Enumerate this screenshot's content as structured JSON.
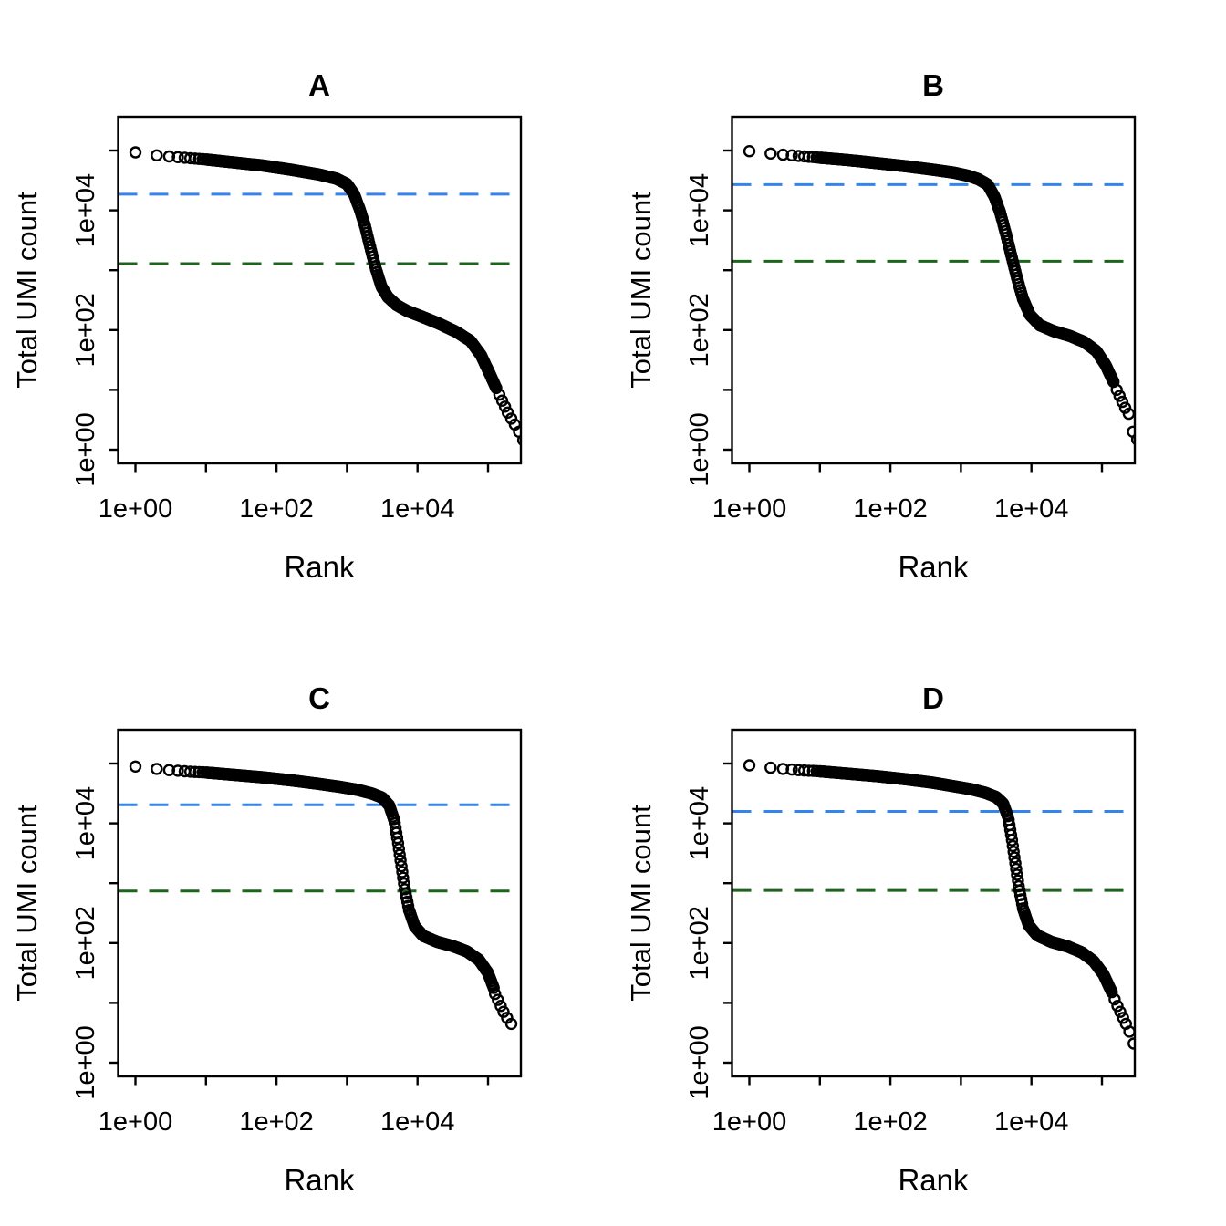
{
  "point_color": "#000000",
  "knee_color": "#3584ec",
  "inflection_color": "#1d651d",
  "chart_data": [
    {
      "id": "A",
      "type": "scatter",
      "title": "A",
      "xlabel": "Rank",
      "ylabel": "Total UMI count",
      "x_scale": "log10",
      "y_scale": "log10",
      "xlim_log10": [
        -0.25,
        5.72
      ],
      "ylim_log10": [
        -0.23,
        5.56
      ],
      "x_tick_decades": [
        0,
        1,
        2,
        3,
        4,
        5
      ],
      "y_tick_decades": [
        0,
        1,
        2,
        3,
        4,
        5
      ],
      "x_labeled_decades": [
        0,
        2,
        4
      ],
      "y_labeled_decades": [
        0,
        2,
        4
      ],
      "x_tick_labels": [
        "1e+00",
        "1e+02",
        "1e+04"
      ],
      "y_tick_labels": [
        "1e+00",
        "1e+02",
        "1e+04"
      ],
      "point_style": {
        "shape": "open-circle",
        "color": "#000000"
      },
      "lines": {
        "knee": {
          "color": "#3584ec",
          "style": "dashed",
          "log10_count": 4.27,
          "approx_count": 18600
        },
        "inflection": {
          "color": "#1d651d",
          "style": "dashed",
          "log10_count": 3.11,
          "approx_count": 1290
        }
      },
      "curve_log10": [
        [
          0,
          4.97
        ],
        [
          0.3,
          4.92
        ],
        [
          0.48,
          4.9
        ],
        [
          0.7,
          4.88
        ],
        [
          1.0,
          4.85
        ],
        [
          1.4,
          4.8
        ],
        [
          1.8,
          4.75
        ],
        [
          2.2,
          4.68
        ],
        [
          2.6,
          4.6
        ],
        [
          2.85,
          4.53
        ],
        [
          3.0,
          4.44
        ],
        [
          3.1,
          4.27
        ],
        [
          3.18,
          4.02
        ],
        [
          3.26,
          3.72
        ],
        [
          3.33,
          3.38
        ],
        [
          3.41,
          3.02
        ],
        [
          3.49,
          2.72
        ],
        [
          3.58,
          2.55
        ],
        [
          3.7,
          2.42
        ],
        [
          3.85,
          2.32
        ],
        [
          4.05,
          2.23
        ],
        [
          4.3,
          2.11
        ],
        [
          4.55,
          1.97
        ],
        [
          4.75,
          1.82
        ],
        [
          4.9,
          1.58
        ],
        [
          5.02,
          1.28
        ],
        [
          5.12,
          1.02
        ]
      ],
      "tail_log10": [
        [
          5.16,
          0.92
        ],
        [
          5.2,
          0.82
        ],
        [
          5.24,
          0.72
        ],
        [
          5.28,
          0.62
        ],
        [
          5.33,
          0.52
        ],
        [
          5.38,
          0.42
        ],
        [
          5.44,
          0.3
        ],
        [
          5.5,
          0.16
        ]
      ]
    },
    {
      "id": "B",
      "type": "scatter",
      "title": "B",
      "xlabel": "Rank",
      "ylabel": "Total UMI count",
      "x_scale": "log10",
      "y_scale": "log10",
      "xlim_log10": [
        -0.25,
        5.72
      ],
      "ylim_log10": [
        -0.23,
        5.56
      ],
      "x_tick_decades": [
        0,
        1,
        2,
        3,
        4,
        5
      ],
      "y_tick_decades": [
        0,
        1,
        2,
        3,
        4,
        5
      ],
      "x_labeled_decades": [
        0,
        2,
        4
      ],
      "y_labeled_decades": [
        0,
        2,
        4
      ],
      "x_tick_labels": [
        "1e+00",
        "1e+02",
        "1e+04"
      ],
      "y_tick_labels": [
        "1e+00",
        "1e+02",
        "1e+04"
      ],
      "point_style": {
        "shape": "open-circle",
        "color": "#000000"
      },
      "lines": {
        "knee": {
          "color": "#3584ec",
          "style": "dashed",
          "log10_count": 4.43,
          "approx_count": 26900
        },
        "inflection": {
          "color": "#1d651d",
          "style": "dashed",
          "log10_count": 3.15,
          "approx_count": 1410
        }
      },
      "curve_log10": [
        [
          0,
          4.99
        ],
        [
          0.3,
          4.95
        ],
        [
          0.48,
          4.93
        ],
        [
          0.7,
          4.91
        ],
        [
          1.0,
          4.88
        ],
        [
          1.4,
          4.84
        ],
        [
          1.8,
          4.79
        ],
        [
          2.2,
          4.74
        ],
        [
          2.6,
          4.68
        ],
        [
          2.9,
          4.63
        ],
        [
          3.1,
          4.58
        ],
        [
          3.25,
          4.52
        ],
        [
          3.38,
          4.43
        ],
        [
          3.48,
          4.22
        ],
        [
          3.56,
          3.95
        ],
        [
          3.64,
          3.6
        ],
        [
          3.72,
          3.22
        ],
        [
          3.8,
          2.85
        ],
        [
          3.88,
          2.52
        ],
        [
          3.98,
          2.25
        ],
        [
          4.12,
          2.08
        ],
        [
          4.32,
          1.98
        ],
        [
          4.55,
          1.9
        ],
        [
          4.75,
          1.8
        ],
        [
          4.92,
          1.65
        ],
        [
          5.05,
          1.42
        ],
        [
          5.17,
          1.12
        ]
      ],
      "tail_log10": [
        [
          5.21,
          1.0
        ],
        [
          5.25,
          0.9
        ],
        [
          5.29,
          0.8
        ],
        [
          5.33,
          0.7
        ],
        [
          5.38,
          0.6
        ],
        [
          5.44,
          0.3
        ],
        [
          5.5,
          0.17
        ]
      ]
    },
    {
      "id": "C",
      "type": "scatter",
      "title": "C",
      "xlabel": "Rank",
      "ylabel": "Total UMI count",
      "x_scale": "log10",
      "y_scale": "log10",
      "xlim_log10": [
        -0.25,
        5.72
      ],
      "ylim_log10": [
        -0.23,
        5.56
      ],
      "x_tick_decades": [
        0,
        1,
        2,
        3,
        4,
        5
      ],
      "y_tick_decades": [
        0,
        1,
        2,
        3,
        4,
        5
      ],
      "x_labeled_decades": [
        0,
        2,
        4
      ],
      "y_labeled_decades": [
        0,
        2,
        4
      ],
      "x_tick_labels": [
        "1e+00",
        "1e+02",
        "1e+04"
      ],
      "y_tick_labels": [
        "1e+00",
        "1e+02",
        "1e+04"
      ],
      "point_style": {
        "shape": "open-circle",
        "color": "#000000"
      },
      "lines": {
        "knee": {
          "color": "#3584ec",
          "style": "dashed",
          "log10_count": 4.31,
          "approx_count": 20400
        },
        "inflection": {
          "color": "#1d651d",
          "style": "dashed",
          "log10_count": 2.87,
          "approx_count": 740
        }
      },
      "curve_log10": [
        [
          0,
          4.95
        ],
        [
          0.3,
          4.91
        ],
        [
          0.48,
          4.89
        ],
        [
          0.7,
          4.87
        ],
        [
          1.0,
          4.85
        ],
        [
          1.4,
          4.81
        ],
        [
          1.8,
          4.77
        ],
        [
          2.2,
          4.72
        ],
        [
          2.6,
          4.66
        ],
        [
          2.9,
          4.61
        ],
        [
          3.15,
          4.56
        ],
        [
          3.35,
          4.5
        ],
        [
          3.5,
          4.43
        ],
        [
          3.6,
          4.3
        ],
        [
          3.67,
          4.05
        ],
        [
          3.72,
          3.7
        ],
        [
          3.77,
          3.3
        ],
        [
          3.82,
          2.9
        ],
        [
          3.88,
          2.55
        ],
        [
          3.96,
          2.28
        ],
        [
          4.08,
          2.12
        ],
        [
          4.28,
          2.02
        ],
        [
          4.5,
          1.95
        ],
        [
          4.7,
          1.86
        ],
        [
          4.87,
          1.72
        ],
        [
          5.0,
          1.5
        ],
        [
          5.08,
          1.25
        ]
      ],
      "tail_log10": [
        [
          5.1,
          1.15
        ],
        [
          5.14,
          1.05
        ],
        [
          5.18,
          0.95
        ],
        [
          5.22,
          0.85
        ],
        [
          5.27,
          0.75
        ],
        [
          5.33,
          0.65
        ]
      ]
    },
    {
      "id": "D",
      "type": "scatter",
      "title": "D",
      "xlabel": "Rank",
      "ylabel": "Total UMI count",
      "x_scale": "log10",
      "y_scale": "log10",
      "xlim_log10": [
        -0.25,
        5.72
      ],
      "ylim_log10": [
        -0.23,
        5.56
      ],
      "x_tick_decades": [
        0,
        1,
        2,
        3,
        4,
        5
      ],
      "y_tick_decades": [
        0,
        1,
        2,
        3,
        4,
        5
      ],
      "x_labeled_decades": [
        0,
        2,
        4
      ],
      "y_labeled_decades": [
        0,
        2,
        4
      ],
      "x_tick_labels": [
        "1e+00",
        "1e+02",
        "1e+04"
      ],
      "y_tick_labels": [
        "1e+00",
        "1e+02",
        "1e+04"
      ],
      "point_style": {
        "shape": "open-circle",
        "color": "#000000"
      },
      "lines": {
        "knee": {
          "color": "#3584ec",
          "style": "dashed",
          "log10_count": 4.2,
          "approx_count": 15850
        },
        "inflection": {
          "color": "#1d651d",
          "style": "dashed",
          "log10_count": 2.88,
          "approx_count": 760
        }
      },
      "curve_log10": [
        [
          0,
          4.97
        ],
        [
          0.3,
          4.93
        ],
        [
          0.48,
          4.91
        ],
        [
          0.7,
          4.89
        ],
        [
          1.0,
          4.87
        ],
        [
          1.4,
          4.83
        ],
        [
          1.8,
          4.79
        ],
        [
          2.2,
          4.74
        ],
        [
          2.6,
          4.68
        ],
        [
          2.9,
          4.62
        ],
        [
          3.15,
          4.57
        ],
        [
          3.35,
          4.51
        ],
        [
          3.5,
          4.44
        ],
        [
          3.6,
          4.33
        ],
        [
          3.67,
          4.1
        ],
        [
          3.72,
          3.75
        ],
        [
          3.77,
          3.35
        ],
        [
          3.82,
          2.95
        ],
        [
          3.88,
          2.58
        ],
        [
          3.96,
          2.3
        ],
        [
          4.08,
          2.13
        ],
        [
          4.28,
          2.02
        ],
        [
          4.52,
          1.94
        ],
        [
          4.72,
          1.84
        ],
        [
          4.88,
          1.7
        ],
        [
          5.02,
          1.48
        ],
        [
          5.14,
          1.18
        ]
      ],
      "tail_log10": [
        [
          5.18,
          1.06
        ],
        [
          5.22,
          0.95
        ],
        [
          5.26,
          0.85
        ],
        [
          5.3,
          0.75
        ],
        [
          5.34,
          0.65
        ],
        [
          5.39,
          0.52
        ],
        [
          5.45,
          0.32
        ]
      ]
    }
  ]
}
